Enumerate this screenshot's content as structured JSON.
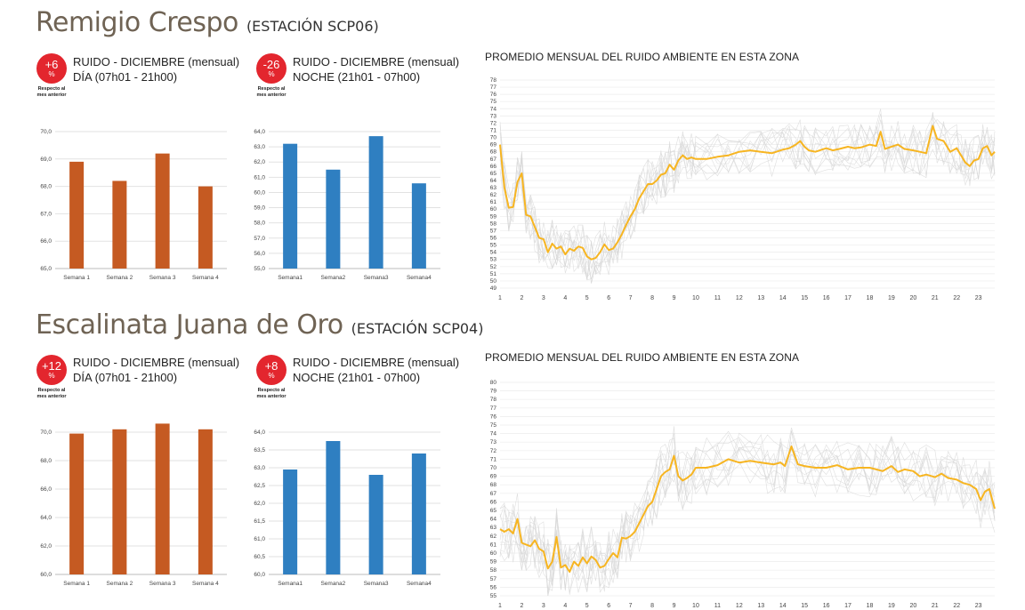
{
  "stations": [
    {
      "name": "Remigio Crespo",
      "code": "(ESTACIÓN SCP06)",
      "day": {
        "change": "+6",
        "unit": "%",
        "note1": "Respecto al",
        "note2": "mes anterior",
        "line1": "RUIDO - DICIEMBRE (mensual)",
        "line2": "DÍA (07h01 - 21h00)"
      },
      "night": {
        "change": "-26",
        "unit": "%",
        "note1": "Respecto al",
        "note2": "mes anterior",
        "line1": "RUIDO - DICIEMBRE (mensual)",
        "line2": "NOCHE (21h01 - 07h00)"
      },
      "profile_title": "PROMEDIO MENSUAL DEL RUIDO AMBIENTE EN ESTA ZONA"
    },
    {
      "name": "Escalinata Juana de Oro",
      "code": "(ESTACIÓN SCP04)",
      "day": {
        "change": "+12",
        "unit": "%",
        "note1": "Respecto al",
        "note2": "mes anterior",
        "line1": "RUIDO - DICIEMBRE (mensual)",
        "line2": "DÍA (07h01 - 21h00)"
      },
      "night": {
        "change": "+8",
        "unit": "%",
        "note1": "Respecto al",
        "note2": "mes anterior",
        "line1": "RUIDO - DICIEMBRE (mensual)",
        "line2": "NOCHE (21h01 - 07h00)"
      },
      "profile_title": "PROMEDIO MENSUAL DEL RUIDO AMBIENTE EN ESTA ZONA"
    }
  ],
  "colors": {
    "day_bar": "#c55a22",
    "night_bar": "#2f7fc1",
    "avg_line": "#f7b521",
    "bg_lines": "#d7d7d7",
    "title": "#6f6354",
    "badge": "#e3262e"
  },
  "chart_data": [
    {
      "id": "scp06-day",
      "type": "bar",
      "categories": [
        "Semana 1",
        "Semana 2",
        "Semana 3",
        "Semana 4"
      ],
      "values": [
        68.9,
        68.2,
        69.2,
        68.0
      ],
      "ylim": [
        65.0,
        70.0
      ],
      "yticks": [
        "65,0",
        "66,0",
        "67,0",
        "68,0",
        "69,0",
        "70,0"
      ],
      "grid": true
    },
    {
      "id": "scp06-night",
      "type": "bar",
      "categories": [
        "Semana1",
        "Semana2",
        "Semana3",
        "Semana4"
      ],
      "values": [
        63.2,
        61.5,
        63.7,
        60.6
      ],
      "ylim": [
        55.0,
        64.0
      ],
      "yticks": [
        "55,0",
        "56,0",
        "57,0",
        "58,0",
        "59,0",
        "60,0",
        "61,0",
        "62,0",
        "63,0",
        "64,0"
      ],
      "grid": true
    },
    {
      "id": "scp06-profile",
      "type": "line",
      "title": "PROMEDIO MENSUAL DEL RUIDO AMBIENTE EN ESTA ZONA",
      "xlabels": [
        "1",
        "2",
        "3",
        "4",
        "5",
        "6",
        "7",
        "8",
        "9",
        "10",
        "11",
        "12",
        "13",
        "14",
        "15",
        "16",
        "17",
        "18",
        "19",
        "20",
        "21",
        "22",
        "23"
      ],
      "ylim": [
        49,
        78
      ],
      "x": [
        1,
        1.2,
        1.4,
        1.6,
        1.8,
        2,
        2.2,
        2.4,
        2.6,
        2.8,
        3,
        3.2,
        3.4,
        3.6,
        3.8,
        4,
        4.2,
        4.4,
        4.6,
        4.8,
        5,
        5.2,
        5.4,
        5.6,
        5.8,
        6,
        6.2,
        6.4,
        6.6,
        6.8,
        7,
        7.2,
        7.4,
        7.6,
        7.8,
        8,
        8.2,
        8.4,
        8.6,
        8.8,
        9,
        9.2,
        9.4,
        9.6,
        9.8,
        10,
        10.5,
        11,
        11.5,
        12,
        12.5,
        13,
        13.5,
        14,
        14.3,
        14.6,
        14.8,
        15,
        15.2,
        15.5,
        16,
        16.3,
        16.6,
        17,
        17.3,
        17.6,
        18,
        18.3,
        18.5,
        18.7,
        19,
        19.3,
        19.6,
        20,
        20.3,
        20.6,
        20.9,
        21.1,
        21.4,
        21.7,
        22,
        22.2,
        22.4,
        22.6,
        22.8,
        23,
        23.2,
        23.4,
        23.6,
        23.75
      ],
      "avg": [
        69,
        63,
        60.2,
        60.3,
        63.8,
        65,
        59.2,
        59,
        57.5,
        56,
        55.8,
        54,
        55.2,
        54.5,
        54.8,
        53.7,
        54.5,
        54.2,
        54.8,
        54.6,
        53.4,
        53,
        53.2,
        54,
        55.1,
        54.3,
        54.5,
        55.4,
        56.5,
        57.8,
        59,
        60,
        61.5,
        62.5,
        63.5,
        63.5,
        64,
        64.8,
        65,
        66.2,
        65.5,
        66.8,
        67.5,
        67,
        67.2,
        67,
        67,
        67.3,
        67.5,
        68,
        68.2,
        68,
        67.8,
        68.3,
        68.5,
        69,
        69.5,
        68.7,
        68.2,
        68,
        68.5,
        68.2,
        68.4,
        68.7,
        68.5,
        68.6,
        69,
        68.8,
        70.8,
        68.4,
        68.7,
        69,
        68.4,
        68.2,
        68,
        67.8,
        71.6,
        69.8,
        69.5,
        68,
        68.5,
        67.5,
        66.5,
        66,
        66.8,
        67,
        68.5,
        68.8,
        67.5,
        68
      ]
    },
    {
      "id": "scp04-day",
      "type": "bar",
      "categories": [
        "Semana 1",
        "Semana 2",
        "Semana 3",
        "Semana 4"
      ],
      "values": [
        69.9,
        70.2,
        70.6,
        70.2
      ],
      "ylim": [
        60.0,
        70.0
      ],
      "yticks": [
        "60,0",
        "62,0",
        "64,0",
        "66,0",
        "68,0",
        "70,0"
      ],
      "grid": true
    },
    {
      "id": "scp04-night",
      "type": "bar",
      "categories": [
        "Semana1",
        "Semana2",
        "Semana3",
        "Semana4"
      ],
      "values": [
        62.95,
        63.75,
        62.8,
        63.4
      ],
      "ylim": [
        60.0,
        64.0
      ],
      "yticks": [
        "60,0",
        "60,5",
        "61,0",
        "61,5",
        "62,0",
        "62,5",
        "63,0",
        "63,5",
        "64,0"
      ],
      "grid": true
    },
    {
      "id": "scp04-profile",
      "type": "line",
      "title": "PROMEDIO MENSUAL DEL RUIDO AMBIENTE EN ESTA ZONA",
      "xlabels": [
        "1",
        "2",
        "3",
        "4",
        "5",
        "6",
        "7",
        "8",
        "9",
        "10",
        "11",
        "12",
        "13",
        "14",
        "15",
        "16",
        "17",
        "18",
        "19",
        "20",
        "21",
        "22",
        "23"
      ],
      "ylim": [
        55,
        80
      ],
      "x": [
        1,
        1.2,
        1.4,
        1.6,
        1.8,
        2,
        2.2,
        2.4,
        2.6,
        2.8,
        3,
        3.2,
        3.4,
        3.6,
        3.8,
        4,
        4.2,
        4.4,
        4.6,
        4.8,
        5,
        5.2,
        5.4,
        5.6,
        5.8,
        6,
        6.2,
        6.4,
        6.6,
        6.8,
        7,
        7.2,
        7.4,
        7.6,
        7.8,
        8,
        8.2,
        8.4,
        8.6,
        8.8,
        9,
        9.2,
        9.4,
        9.6,
        9.8,
        10,
        10.5,
        11,
        11.5,
        12,
        12.5,
        13,
        13.3,
        13.6,
        13.9,
        14.1,
        14.4,
        14.7,
        15,
        15.5,
        16,
        16.5,
        17,
        17.5,
        18,
        18.3,
        18.6,
        19,
        19.3,
        19.6,
        20,
        20.3,
        20.6,
        21,
        21.3,
        21.6,
        22,
        22.3,
        22.6,
        22.9,
        23.1,
        23.3,
        23.5,
        23.75
      ],
      "avg": [
        62.8,
        62.5,
        62.8,
        62.3,
        64,
        61.2,
        61,
        60.8,
        61.5,
        60.5,
        60.2,
        58.2,
        59,
        61.9,
        58.3,
        58.6,
        57.8,
        59,
        58.5,
        59.5,
        58.8,
        59.6,
        59.2,
        58.3,
        58.5,
        59.3,
        60,
        59.5,
        61.8,
        61.7,
        62,
        62.5,
        63.5,
        64.5,
        65.5,
        66,
        67.5,
        69,
        69.5,
        69.8,
        71.4,
        69,
        68.5,
        68.8,
        69.2,
        70,
        70,
        70.3,
        71,
        70.6,
        70.8,
        70.6,
        70.5,
        70.4,
        70.6,
        70.2,
        72.5,
        70.4,
        70.2,
        70,
        70,
        70.3,
        69.8,
        70,
        70,
        69.8,
        69.6,
        70.2,
        69.5,
        69.8,
        69.6,
        69,
        69.2,
        68.9,
        69.3,
        68.8,
        68.6,
        68.2,
        68,
        67.5,
        66.2,
        67.2,
        67.5,
        65.2
      ]
    }
  ]
}
